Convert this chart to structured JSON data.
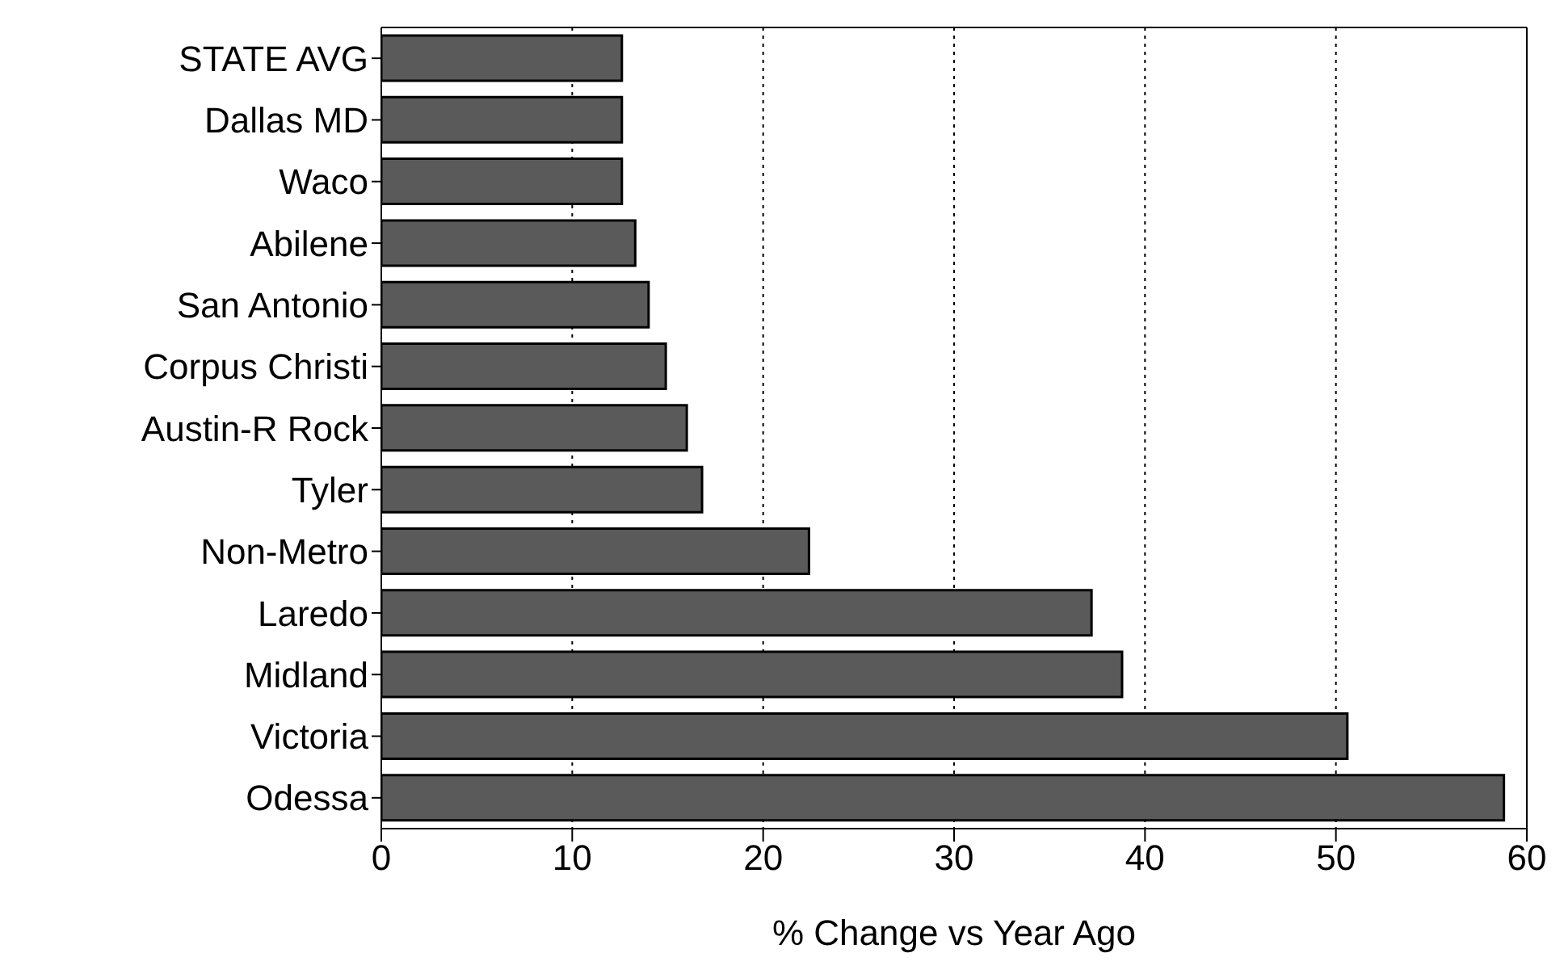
{
  "chart_data": {
    "type": "bar",
    "orientation": "horizontal",
    "xlabel": "% Change vs Year Ago",
    "categories": [
      "STATE AVG",
      "Dallas MD",
      "Waco",
      "Abilene",
      "San Antonio",
      "Corpus Christi",
      "Austin-R Rock",
      "Tyler",
      "Non-Metro",
      "Laredo",
      "Midland",
      "Victoria",
      "Odessa"
    ],
    "values": [
      12.6,
      12.6,
      12.6,
      13.3,
      14.0,
      14.9,
      16.0,
      16.8,
      22.4,
      37.2,
      38.8,
      50.6,
      58.8
    ],
    "color": "#5a5a5a",
    "xlim": [
      0,
      60
    ],
    "xticks": [
      0,
      10,
      20,
      30,
      40,
      50,
      60
    ],
    "grid": "x",
    "line_style": "dotted"
  }
}
